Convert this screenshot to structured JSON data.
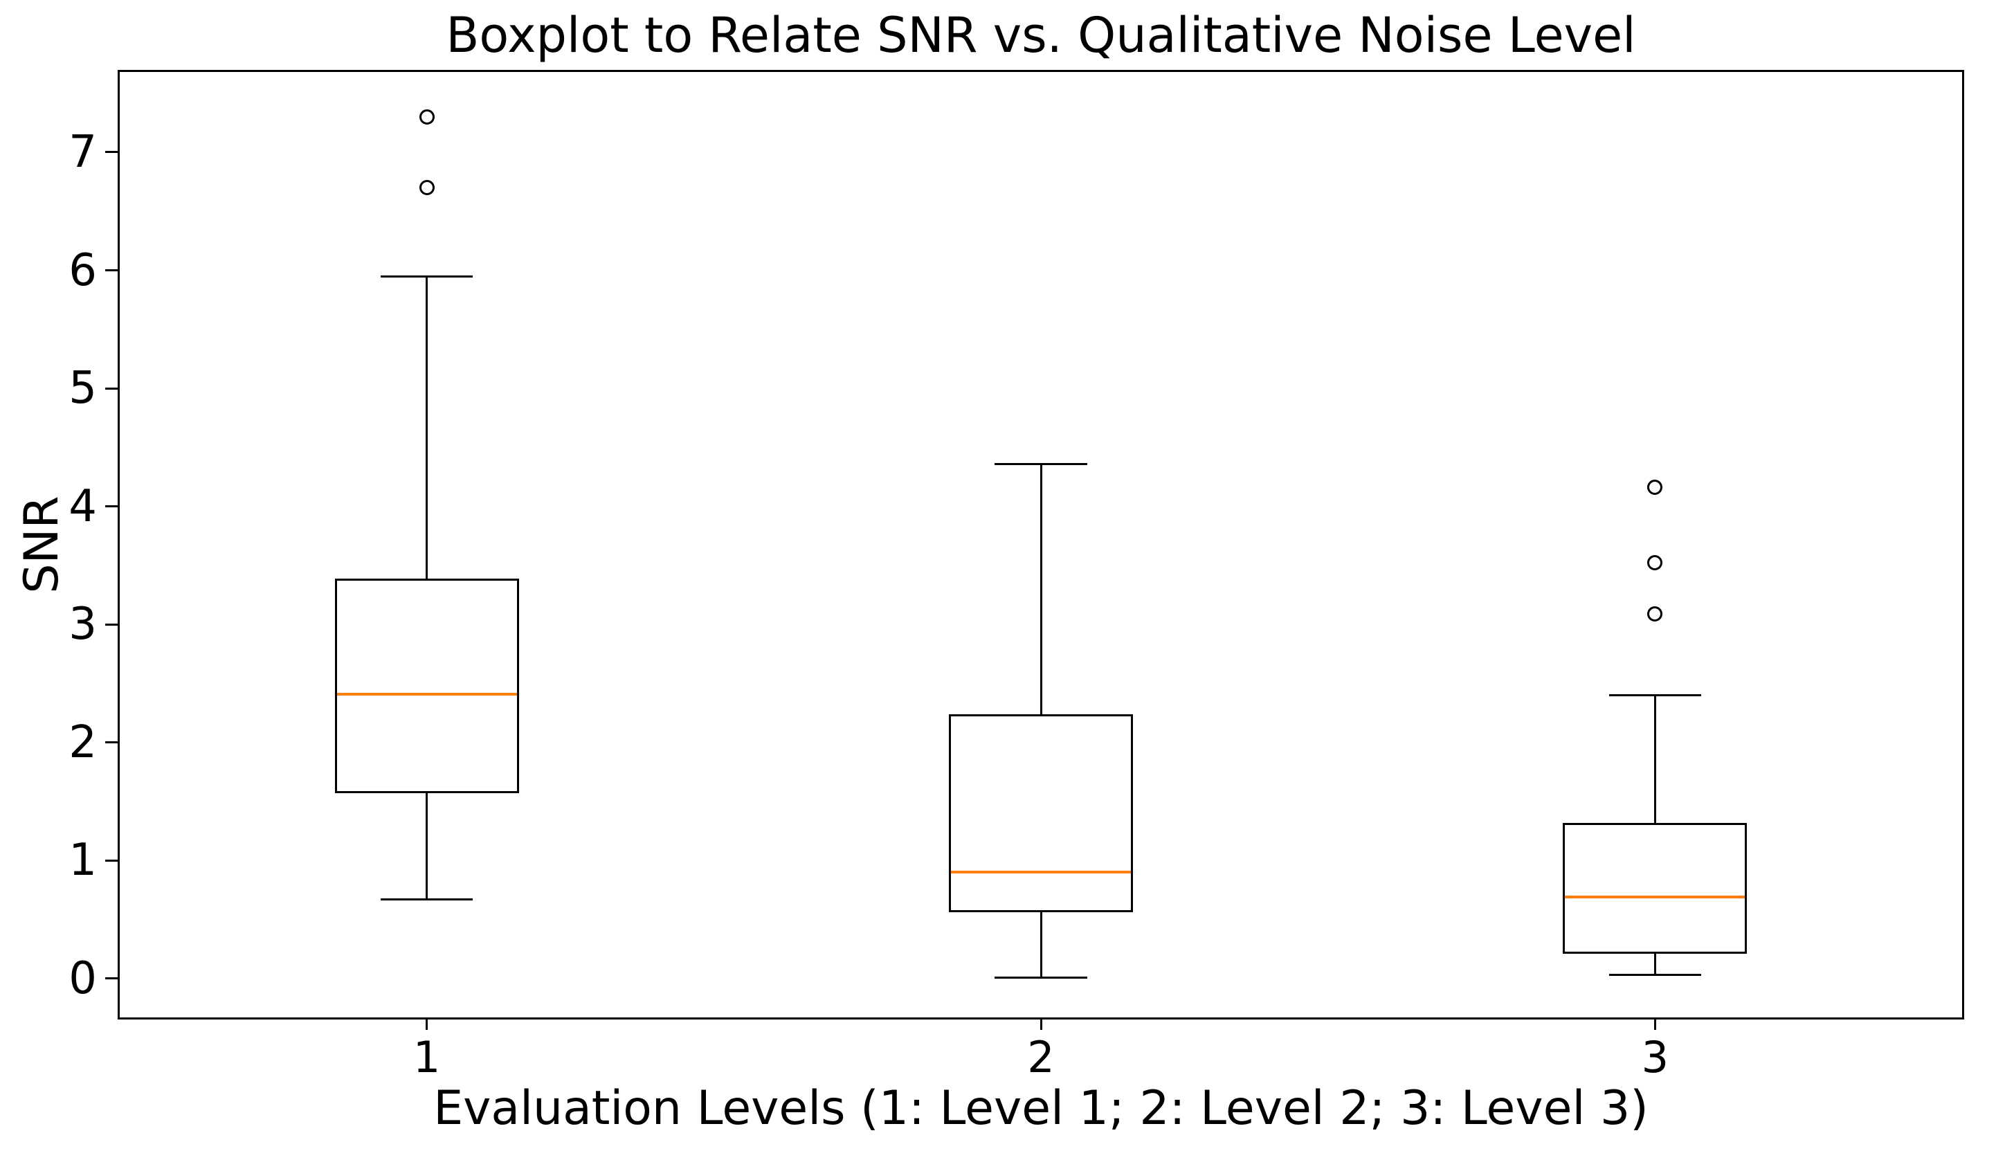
{
  "chart_data": {
    "type": "boxplot",
    "title": "Boxplot to Relate SNR vs. Qualitative Noise Level",
    "xlabel": "Evaluation Levels (1: Level 1; 2: Level 2; 3: Level 3)",
    "ylabel": "SNR",
    "xlim": [
      0.5,
      3.5
    ],
    "ylim": [
      -0.33,
      7.68
    ],
    "yticks": [
      "0",
      "1",
      "2",
      "3",
      "4",
      "5",
      "6",
      "7"
    ],
    "grid": false,
    "legend": null,
    "box_width": 0.3,
    "cap_width": 0.15,
    "colors": {
      "median": "#ff7f0e",
      "line": "#000000",
      "background": "#ffffff"
    },
    "groups": [
      {
        "position": 1,
        "tick_label": "1",
        "level": "Level 1",
        "whisker_low": 0.67,
        "q1": 1.57,
        "median": 2.41,
        "q3": 3.39,
        "whisker_high": 5.95,
        "outliers": [
          6.7,
          7.3
        ]
      },
      {
        "position": 2,
        "tick_label": "2",
        "level": "Level 2",
        "whisker_low": 0.01,
        "q1": 0.56,
        "median": 0.9,
        "q3": 2.24,
        "whisker_high": 4.36,
        "outliers": []
      },
      {
        "position": 3,
        "tick_label": "3",
        "level": "Level 3",
        "whisker_low": 0.03,
        "q1": 0.21,
        "median": 0.69,
        "q3": 1.32,
        "whisker_high": 2.4,
        "outliers": [
          3.09,
          3.52,
          4.16
        ]
      }
    ]
  }
}
